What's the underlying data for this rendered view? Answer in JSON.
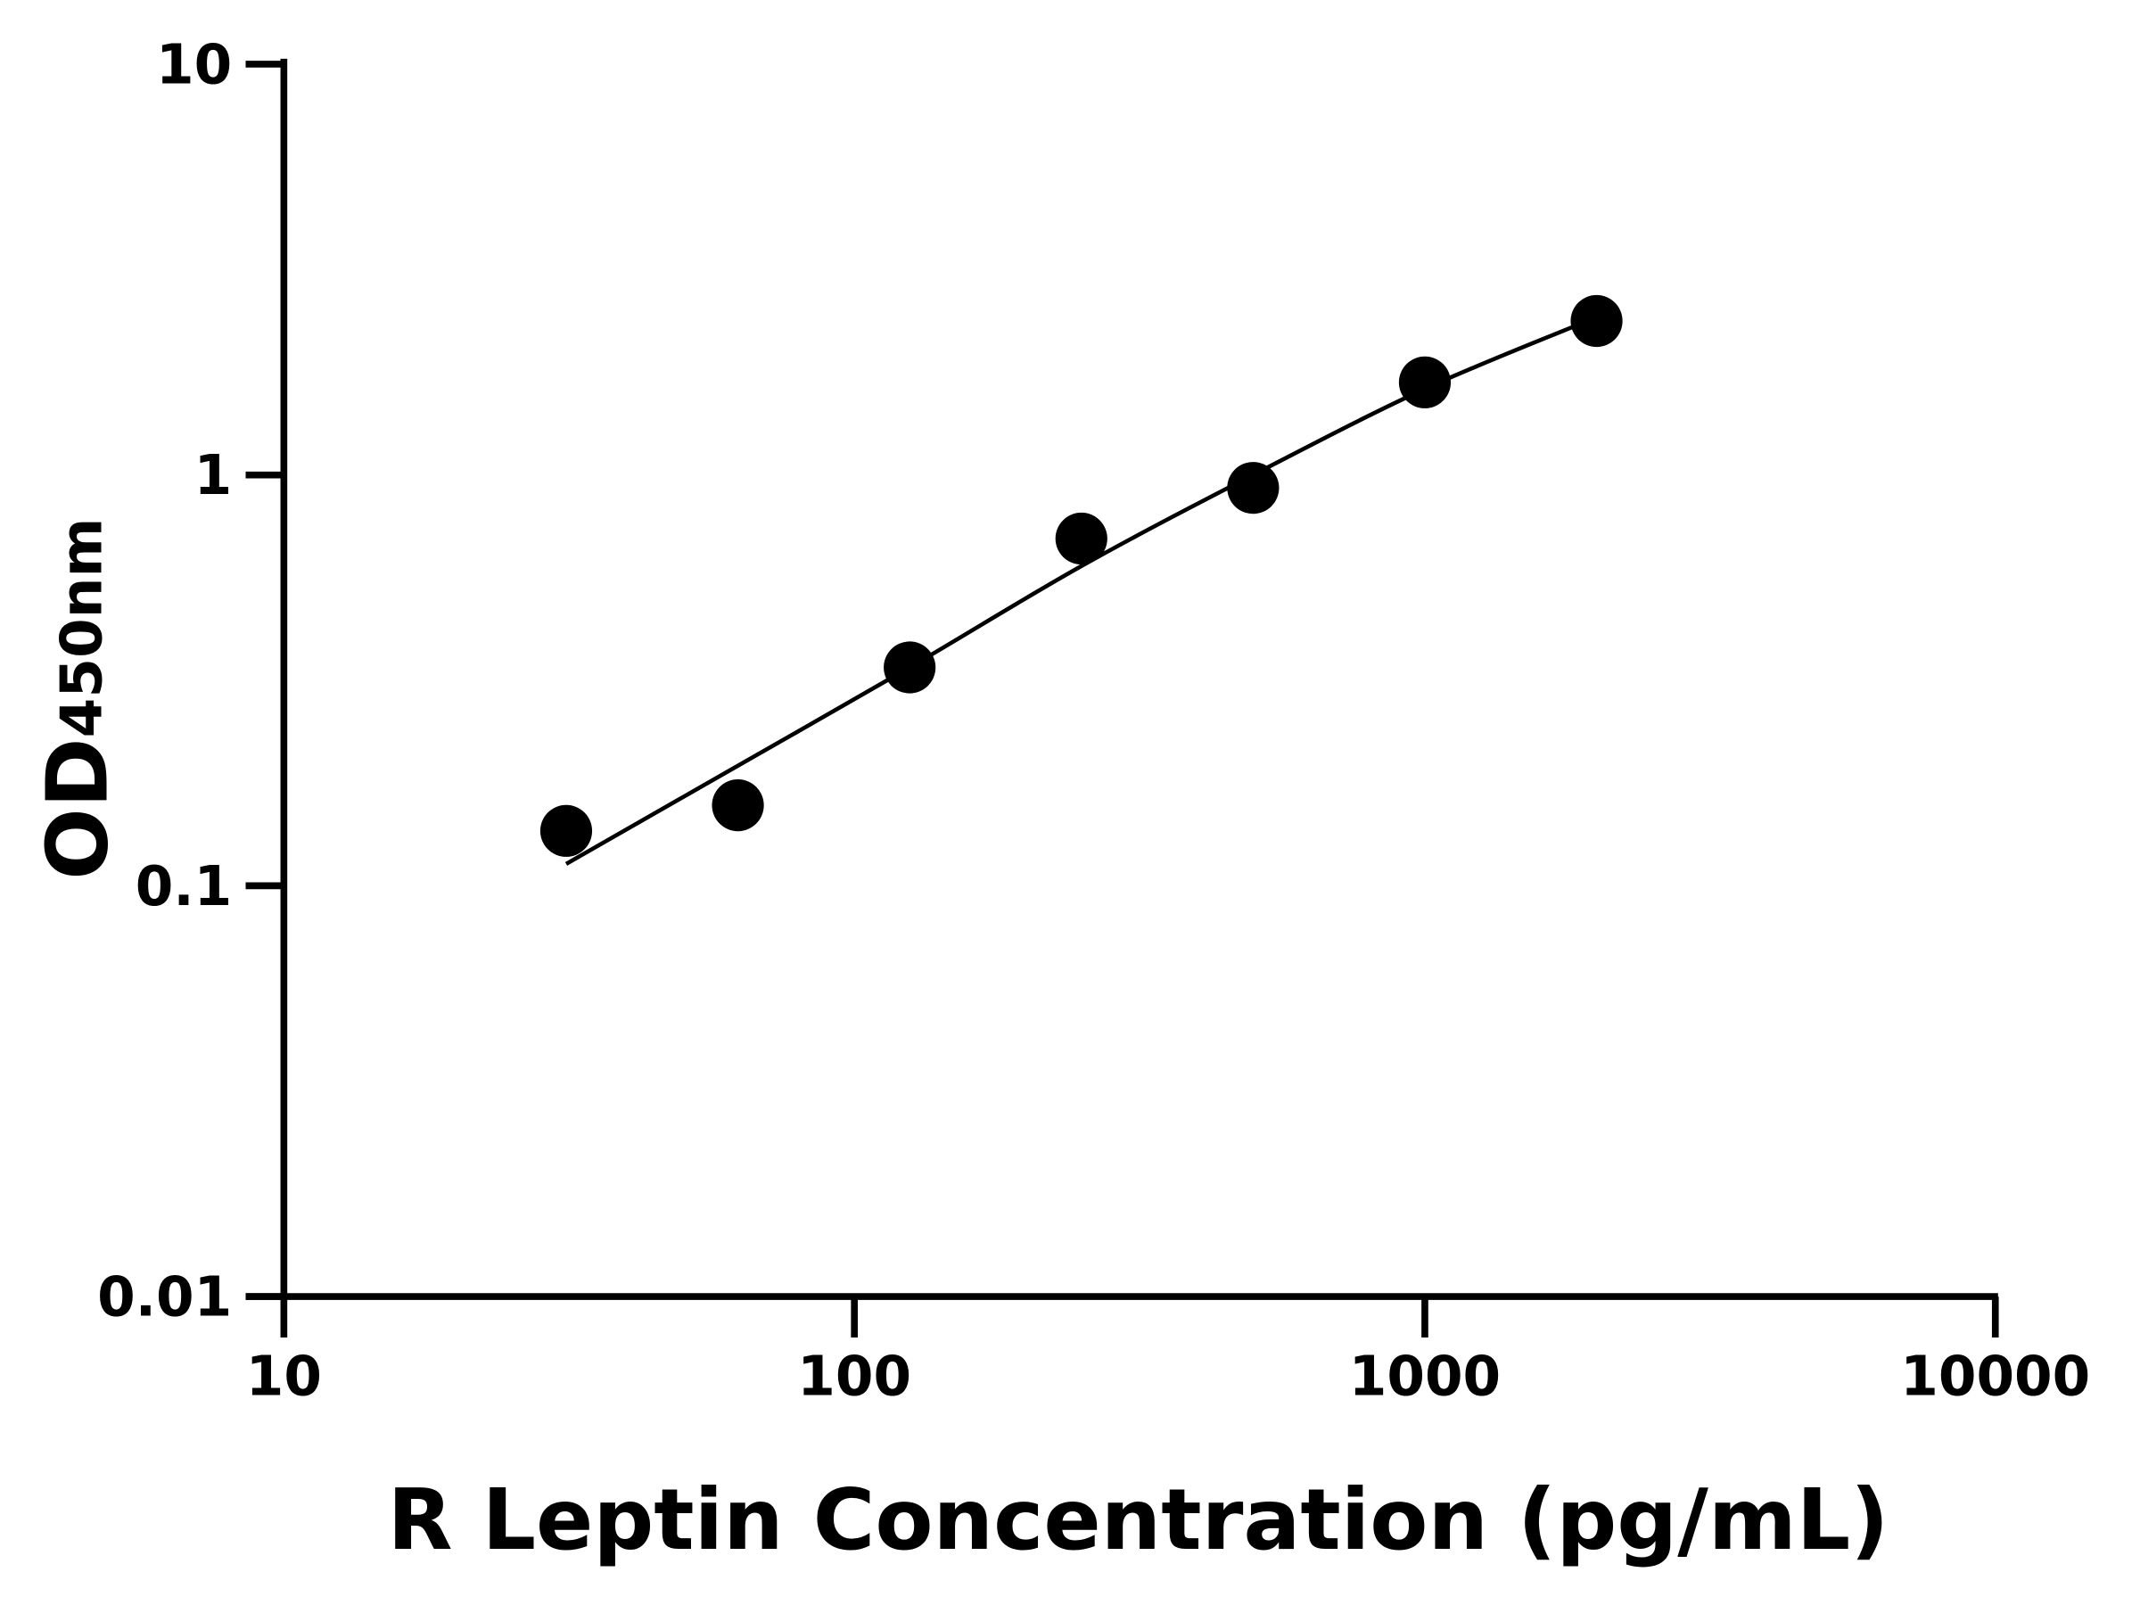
{
  "chart_data": {
    "type": "scatter",
    "xlabel": "R Leptin Concentration (pg/mL)",
    "ylabel_main": "OD",
    "ylabel_sub": "450nm",
    "x_scale": "log",
    "y_scale": "log",
    "xlim": [
      10,
      10000
    ],
    "ylim": [
      0.01,
      10
    ],
    "x_ticks": [
      "10",
      "100",
      "1000",
      "10000"
    ],
    "y_ticks": [
      "0.01",
      "0.1",
      "1",
      "10"
    ],
    "grid": false,
    "legend": "none",
    "points": {
      "x": [
        31.25,
        62.5,
        125,
        250,
        500,
        1000,
        2000
      ],
      "y": [
        0.136,
        0.157,
        0.34,
        0.7,
        0.93,
        1.68,
        2.37
      ]
    },
    "fit_curve": {
      "x": [
        31.25,
        62.5,
        125,
        250,
        500,
        1000,
        2000
      ],
      "y": [
        0.113,
        0.196,
        0.34,
        0.6,
        1.0,
        1.62,
        2.42
      ]
    },
    "colors": {
      "points": "#000000",
      "curve": "#000000",
      "axes": "#000000"
    }
  }
}
